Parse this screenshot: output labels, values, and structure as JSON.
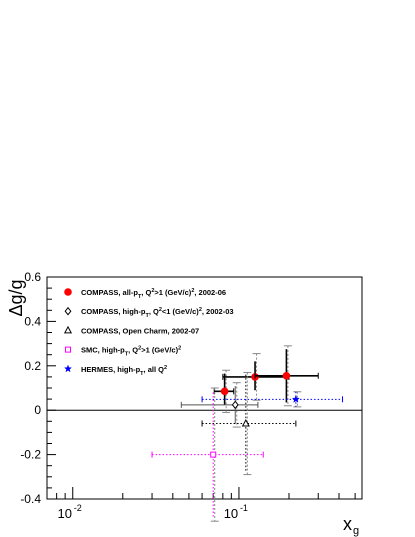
{
  "chart_data": {
    "type": "scatter",
    "xscale": "log",
    "xlim": [
      0.007,
      0.55
    ],
    "ylim": [
      -0.4,
      0.6
    ],
    "xlabel": "x",
    "xlabel_sub": "g",
    "ylabel": "Δg/g",
    "x_tick_labels": [
      {
        "x": 0.01,
        "base": "10",
        "exp": "-2"
      },
      {
        "x": 0.1,
        "base": "10",
        "exp": "-1"
      }
    ],
    "y_ticks": [
      -0.4,
      -0.2,
      0,
      0.2,
      0.4,
      0.6
    ],
    "y_tick_labels": [
      "-0.4",
      "-0.2",
      "0",
      "0.2",
      "0.4",
      "0.6"
    ],
    "zero_line": true,
    "legend_position": "top-left",
    "series": [
      {
        "name": "COMPASS, all-pT, Q²>1 (GeV/c)², 2002-06",
        "legend_parts": [
          [
            "COMPASS, all-p",
            ""
          ],
          [
            "T",
            "sub"
          ],
          [
            ", Q",
            ""
          ],
          [
            "2",
            "sup"
          ],
          [
            ">1 (GeV/c)",
            ""
          ],
          [
            "2",
            "sup"
          ],
          [
            ", 2002-06",
            ""
          ]
        ],
        "marker": "filled-circle",
        "color": "#ff0000",
        "line_style": "solid",
        "line_color": "#000000",
        "line_width": 1.6,
        "points": [
          {
            "x": 0.082,
            "y": 0.085,
            "xlo": 0.071,
            "xhi": 0.093,
            "stat": [
              0.06,
              0.08
            ],
            "sys": [
              0.095,
              0.095
            ]
          },
          {
            "x": 0.125,
            "y": 0.15,
            "xlo": 0.08,
            "xhi": 0.2,
            "stat": [
              0.06,
              0.07
            ],
            "sys": [
              0.105,
              0.105
            ]
          },
          {
            "x": 0.193,
            "y": 0.155,
            "xlo": 0.125,
            "xhi": 0.3,
            "stat": [
              0.12,
              0.12
            ],
            "sys": [
              0.135,
              0.135
            ]
          }
        ]
      },
      {
        "name": "COMPASS, high-pT, Q²<1 (GeV/c)², 2002-03",
        "legend_parts": [
          [
            "COMPASS, high-p",
            ""
          ],
          [
            "T",
            "sub"
          ],
          [
            ", Q",
            ""
          ],
          [
            "2",
            "sup"
          ],
          [
            "<1 (GeV/c)",
            ""
          ],
          [
            "2",
            "sup"
          ],
          [
            ", 2002-03",
            ""
          ]
        ],
        "marker": "open-diamond",
        "color": "#000000",
        "line_style": "solid",
        "line_color": "#555555",
        "line_width": 1,
        "points": [
          {
            "x": 0.095,
            "y": 0.024,
            "xlo": 0.045,
            "xhi": 0.13,
            "stat": [
              0.085,
              0.085
            ],
            "sys": [
              0.1,
              0.1
            ]
          }
        ]
      },
      {
        "name": "COMPASS, Open Charm, 2002-07",
        "legend_parts": [
          [
            "COMPASS, Open Charm, 2002-07",
            ""
          ]
        ],
        "marker": "open-triangle",
        "color": "#000000",
        "line_style": "dotted",
        "line_color": "#000000",
        "line_width": 1,
        "points": [
          {
            "x": 0.11,
            "y": -0.06,
            "xlo": 0.06,
            "xhi": 0.22,
            "stat": [
              0.22,
              0.22
            ],
            "sys": [
              0.23,
              0.23
            ]
          }
        ]
      },
      {
        "name": "SMC, high-pT, Q²>1 (GeV/c)²",
        "legend_parts": [
          [
            "SMC, high-p",
            ""
          ],
          [
            "T",
            "sub"
          ],
          [
            ", Q",
            ""
          ],
          [
            "2",
            "sup"
          ],
          [
            ">1 (GeV/c)",
            ""
          ],
          [
            "2",
            "sup"
          ]
        ],
        "marker": "open-square",
        "color": "#ff00ff",
        "line_style": "dotted",
        "line_color": "#ff00ff",
        "line_width": 1,
        "points": [
          {
            "x": 0.07,
            "y": -0.2,
            "xlo": 0.03,
            "xhi": 0.14,
            "stat": [
              0.28,
              0.28
            ],
            "sys": [
              0.3,
              0.3
            ]
          }
        ]
      },
      {
        "name": "HERMES, high-pT, all Q²",
        "legend_parts": [
          [
            "HERMES, high-p",
            ""
          ],
          [
            "T",
            "sub"
          ],
          [
            ", all Q",
            ""
          ],
          [
            "2",
            "sup"
          ]
        ],
        "marker": "star",
        "color": "#0000ff",
        "line_style": "dotted",
        "line_color": "#0000ff",
        "line_width": 1,
        "points": [
          {
            "x": 0.22,
            "y": 0.049,
            "xlo": 0.06,
            "xhi": 0.42,
            "stat": [
              0.034,
              0.034
            ],
            "sys": [
              0.034,
              0.034
            ]
          }
        ]
      }
    ]
  }
}
